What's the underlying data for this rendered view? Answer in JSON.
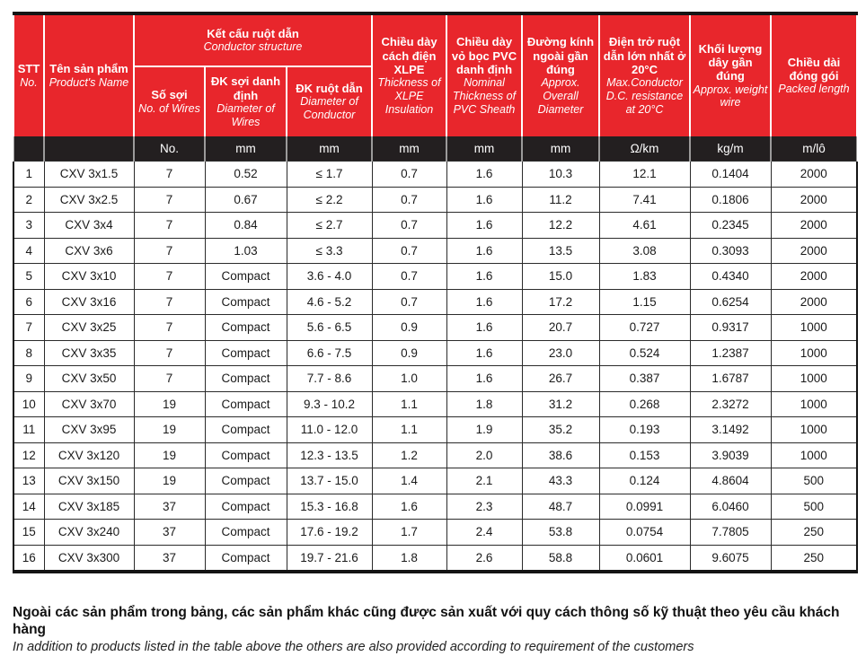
{
  "colors": {
    "header_red": "#e8262c",
    "units_band_black": "#231f20",
    "data_text": "#1a1a1a",
    "header_text": "#ffffff"
  },
  "table": {
    "header": {
      "stt": {
        "vi": "STT",
        "en": "No."
      },
      "product": {
        "vi": "Tên sản phẩm",
        "en": "Product's Name"
      },
      "group": {
        "vi": "Kết cấu ruột dẫn",
        "en": "Conductor structure"
      },
      "sub_wires": {
        "vi": "Số sợi",
        "en": "No. of Wires"
      },
      "sub_dw": {
        "vi": "ĐK sợi danh định",
        "en": "Diameter of Wires"
      },
      "sub_dc": {
        "vi": "ĐK ruột dẫn",
        "en": "Diameter of Conductor"
      },
      "col_xlpe": {
        "vi": "Chiều dày cách điện XLPE",
        "en": "Thickness of XLPE Insulation"
      },
      "col_pvc": {
        "vi": "Chiều dày vỏ bọc PVC danh định",
        "en": "Nominal Thickness of PVC Sheath"
      },
      "col_od": {
        "vi": "Đường kính ngoài gần đúng",
        "en": "Approx. Overall Diameter"
      },
      "col_res": {
        "vi": "Điện trở ruột dẫn lớn nhất ở 20°C",
        "en": "Max.Conductor D.C. resistance at 20°C"
      },
      "col_weight": {
        "vi": "Khối lượng dây gần đúng",
        "en": "Approx. weight wire"
      },
      "col_len": {
        "vi": "Chiều dài đóng gói",
        "en": "Packed length"
      }
    },
    "units": [
      "",
      "",
      "No.",
      "mm",
      "mm",
      "mm",
      "mm",
      "mm",
      "Ω/km",
      "kg/m",
      "m/lô"
    ],
    "rows": [
      [
        "1",
        "CXV 3x1.5",
        "7",
        "0.52",
        "≤ 1.7",
        "0.7",
        "1.6",
        "10.3",
        "12.1",
        "0.1404",
        "2000"
      ],
      [
        "2",
        "CXV 3x2.5",
        "7",
        "0.67",
        "≤ 2.2",
        "0.7",
        "1.6",
        "11.2",
        "7.41",
        "0.1806",
        "2000"
      ],
      [
        "3",
        "CXV 3x4",
        "7",
        "0.84",
        "≤ 2.7",
        "0.7",
        "1.6",
        "12.2",
        "4.61",
        "0.2345",
        "2000"
      ],
      [
        "4",
        "CXV 3x6",
        "7",
        "1.03",
        "≤ 3.3",
        "0.7",
        "1.6",
        "13.5",
        "3.08",
        "0.3093",
        "2000"
      ],
      [
        "5",
        "CXV 3x10",
        "7",
        "Compact",
        "3.6 - 4.0",
        "0.7",
        "1.6",
        "15.0",
        "1.83",
        "0.4340",
        "2000"
      ],
      [
        "6",
        "CXV 3x16",
        "7",
        "Compact",
        "4.6 - 5.2",
        "0.7",
        "1.6",
        "17.2",
        "1.15",
        "0.6254",
        "2000"
      ],
      [
        "7",
        "CXV 3x25",
        "7",
        "Compact",
        "5.6 - 6.5",
        "0.9",
        "1.6",
        "20.7",
        "0.727",
        "0.9317",
        "1000"
      ],
      [
        "8",
        "CXV 3x35",
        "7",
        "Compact",
        "6.6 - 7.5",
        "0.9",
        "1.6",
        "23.0",
        "0.524",
        "1.2387",
        "1000"
      ],
      [
        "9",
        "CXV 3x50",
        "7",
        "Compact",
        "7.7 - 8.6",
        "1.0",
        "1.6",
        "26.7",
        "0.387",
        "1.6787",
        "1000"
      ],
      [
        "10",
        "CXV 3x70",
        "19",
        "Compact",
        "9.3 - 10.2",
        "1.1",
        "1.8",
        "31.2",
        "0.268",
        "2.3272",
        "1000"
      ],
      [
        "11",
        "CXV 3x95",
        "19",
        "Compact",
        "11.0 - 12.0",
        "1.1",
        "1.9",
        "35.2",
        "0.193",
        "3.1492",
        "1000"
      ],
      [
        "12",
        "CXV 3x120",
        "19",
        "Compact",
        "12.3 - 13.5",
        "1.2",
        "2.0",
        "38.6",
        "0.153",
        "3.9039",
        "1000"
      ],
      [
        "13",
        "CXV 3x150",
        "19",
        "Compact",
        "13.7 - 15.0",
        "1.4",
        "2.1",
        "43.3",
        "0.124",
        "4.8604",
        "500"
      ],
      [
        "14",
        "CXV 3x185",
        "37",
        "Compact",
        "15.3 - 16.8",
        "1.6",
        "2.3",
        "48.7",
        "0.0991",
        "6.0460",
        "500"
      ],
      [
        "15",
        "CXV 3x240",
        "37",
        "Compact",
        "17.6 - 19.2",
        "1.7",
        "2.4",
        "53.8",
        "0.0754",
        "7.7805",
        "250"
      ],
      [
        "16",
        "CXV 3x300",
        "37",
        "Compact",
        "19.7 - 21.6",
        "1.8",
        "2.6",
        "58.8",
        "0.0601",
        "9.6075",
        "250"
      ]
    ]
  },
  "footer": {
    "vi": "Ngoài các sản phẩm trong bảng, các sản phẩm khác cũng được sản xuất với quy cách thông số kỹ thuật theo yêu cầu khách hàng",
    "en": "In addition to products listed in the table above the others are also provided according to requirement of the customers"
  }
}
